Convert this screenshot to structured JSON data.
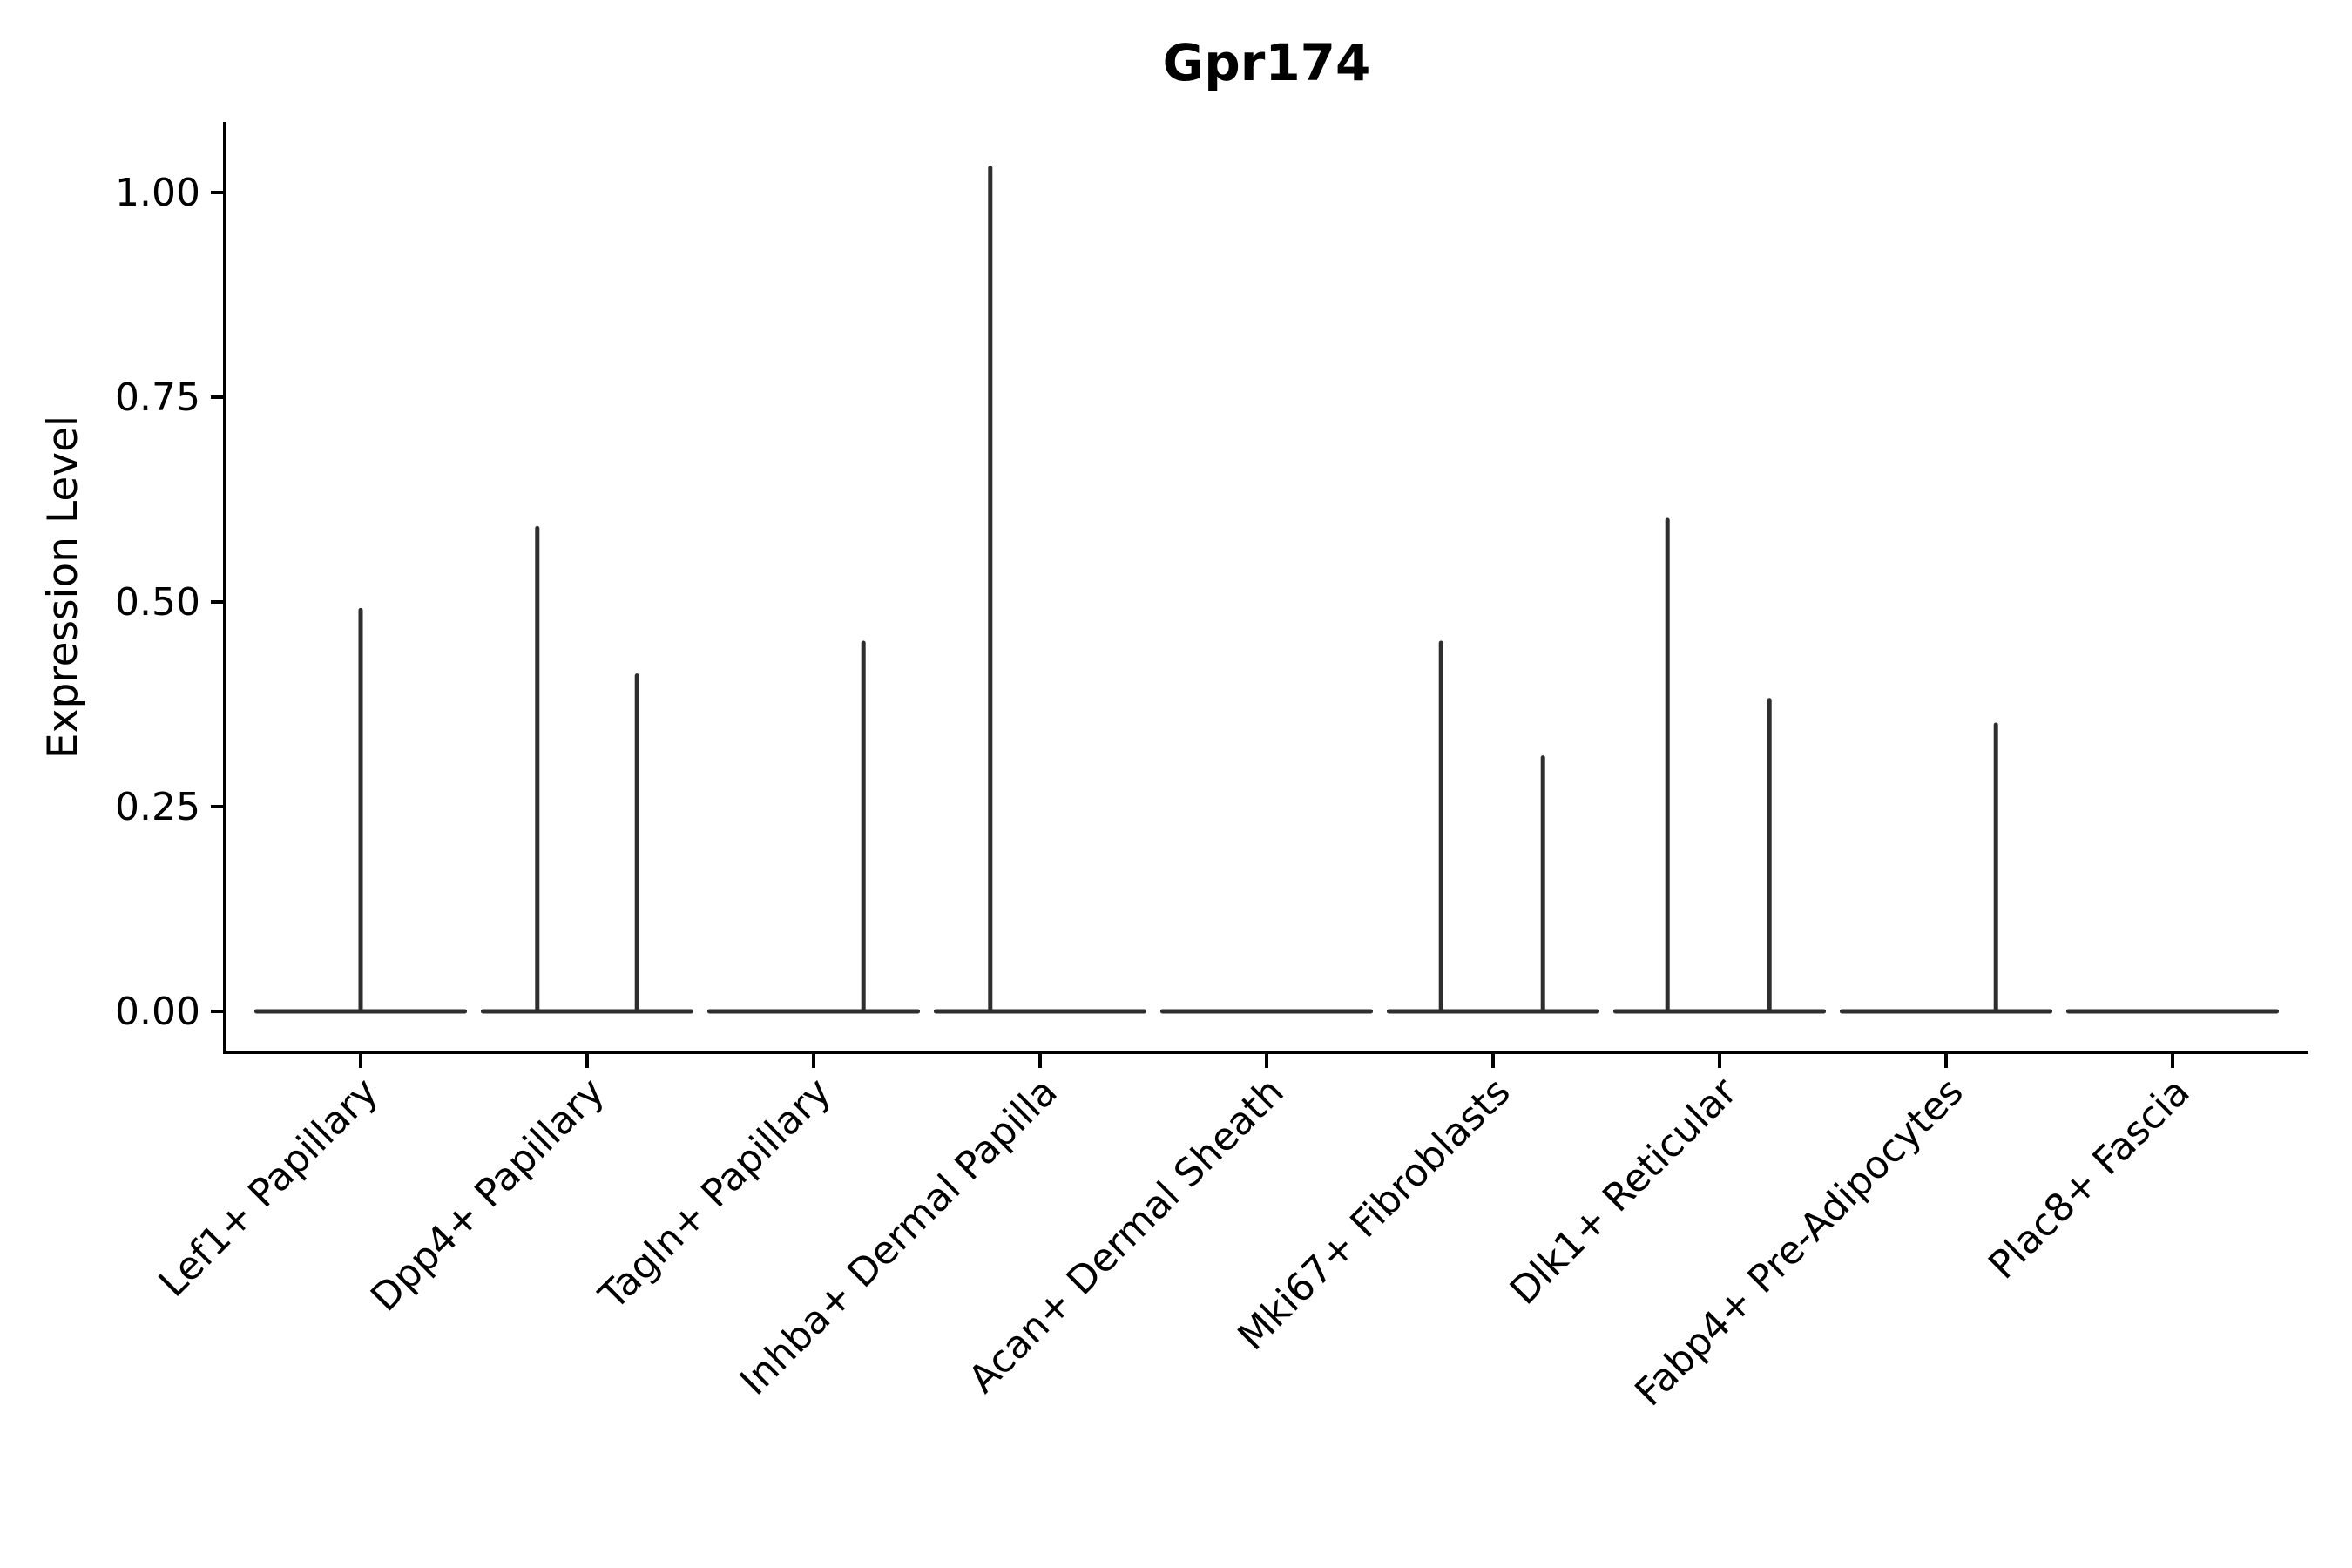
{
  "title": "Gpr174",
  "chart_data": {
    "type": "violin",
    "title": "Gpr174",
    "xlabel": "",
    "ylabel": "Expression Level",
    "ylim": [
      0,
      1.086
    ],
    "yticks": [
      0.0,
      0.25,
      0.5,
      0.75,
      1.0
    ],
    "ytick_labels": [
      "0.00",
      "0.25",
      "0.50",
      "0.75",
      "1.00"
    ],
    "grid": false,
    "legend": "none",
    "x_tick_rotation_deg": 45,
    "categories": [
      "Lef1+ Papillary",
      "Dpp4+ Papillary",
      "Tagln+ Papillary",
      "Inhba+ Dermal Papilla",
      "Acan+ Dermal Sheath",
      "Mki67+ Fibroblasts",
      "Dlk1+ Reticular",
      "Fabp4+ Pre-Adipocytes",
      "Plac8+ Fascia"
    ],
    "violins": [
      {
        "category": "Lef1+ Papillary",
        "base_at": 0,
        "stems": [
          {
            "pos": 0.0,
            "max": 0.49
          }
        ]
      },
      {
        "category": "Dpp4+ Papillary",
        "base_at": 0,
        "stems": [
          {
            "pos": -0.22,
            "max": 0.59
          },
          {
            "pos": 0.22,
            "max": 0.41
          }
        ]
      },
      {
        "category": "Tagln+ Papillary",
        "base_at": 0,
        "stems": [
          {
            "pos": 0.22,
            "max": 0.45
          }
        ]
      },
      {
        "category": "Inhba+ Dermal Papilla",
        "base_at": 0,
        "stems": [
          {
            "pos": -0.22,
            "max": 1.03
          }
        ]
      },
      {
        "category": "Acan+ Dermal Sheath",
        "base_at": 0,
        "stems": []
      },
      {
        "category": "Mki67+ Fibroblasts",
        "base_at": 0,
        "stems": [
          {
            "pos": -0.23,
            "max": 0.45
          },
          {
            "pos": 0.22,
            "max": 0.31
          }
        ]
      },
      {
        "category": "Dlk1+ Reticular",
        "base_at": 0,
        "stems": [
          {
            "pos": -0.23,
            "max": 0.6
          },
          {
            "pos": 0.22,
            "max": 0.38
          }
        ]
      },
      {
        "category": "Fabp4+ Pre-Adipocytes",
        "base_at": 0,
        "stems": [
          {
            "pos": 0.22,
            "max": 0.35
          }
        ]
      },
      {
        "category": "Plac8+ Fascia",
        "base_at": 0,
        "stems": []
      }
    ],
    "base_halfwidth_frac": 0.46
  },
  "colors": {
    "background": "#ffffff",
    "axis": "#000000",
    "violin_stroke": "#2e2e2e",
    "text": "#000000"
  }
}
